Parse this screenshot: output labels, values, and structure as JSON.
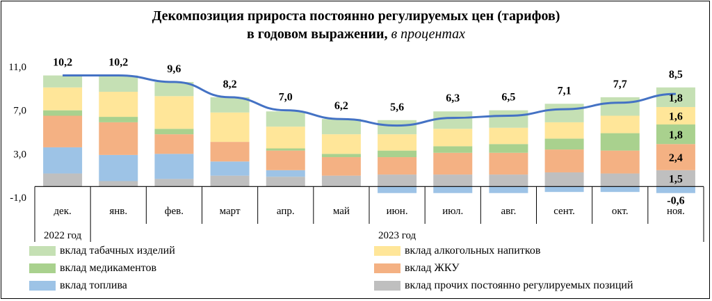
{
  "title": {
    "line1": "Декомпозиция прироста постоянно регулируемых цен (тарифов)",
    "line2": "в годовом выражении,",
    "unit": "в процентах"
  },
  "chart_data": {
    "type": "bar",
    "stacked": true,
    "categories": [
      "дек.",
      "янв.",
      "фев.",
      "март",
      "апр.",
      "май",
      "июн.",
      "июл.",
      "авг.",
      "сент.",
      "окт.",
      "ноя."
    ],
    "year_labels": [
      {
        "text": "2022 год",
        "category": "дек."
      },
      {
        "text": "2023 год",
        "category": "июн."
      }
    ],
    "y_ticks": [
      "11,0",
      "7,0",
      "3,0",
      "-1,0"
    ],
    "ylim": [
      -1,
      11
    ],
    "grid": false,
    "legend_position": "bottom",
    "series": [
      {
        "name": "вклад прочих постоянно регулируемых  позиций",
        "color": "#BFBFBF",
        "values": [
          1.2,
          0.5,
          0.7,
          1.0,
          0.9,
          1.0,
          1.1,
          1.1,
          1.1,
          1.3,
          1.2,
          1.5
        ]
      },
      {
        "name": "вклад топлива",
        "color": "#9DC3E6",
        "values": [
          2.4,
          2.4,
          2.3,
          1.3,
          0.6,
          0.0,
          -0.6,
          -0.6,
          -0.6,
          -0.5,
          -0.5,
          -0.6
        ]
      },
      {
        "name": "вклад ЖКУ",
        "color": "#F4B183",
        "values": [
          2.9,
          3.0,
          1.8,
          1.8,
          1.8,
          1.7,
          1.6,
          2.0,
          2.0,
          2.1,
          2.1,
          2.4
        ]
      },
      {
        "name": "вклад медикаментов",
        "color": "#A9D18E",
        "values": [
          0.5,
          0.5,
          0.5,
          0.0,
          0.2,
          0.3,
          0.6,
          0.6,
          0.8,
          1.0,
          1.6,
          1.8
        ]
      },
      {
        "name": "вклад алкогольных напитков",
        "color": "#FFE699",
        "values": [
          2.1,
          2.3,
          3.0,
          2.7,
          2.0,
          1.8,
          1.5,
          1.6,
          1.5,
          1.5,
          1.6,
          1.6
        ]
      },
      {
        "name": "вклад табачных изделий",
        "color": "#C5E0B4",
        "values": [
          1.1,
          1.5,
          1.3,
          1.4,
          1.4,
          1.4,
          1.3,
          1.6,
          1.6,
          1.7,
          1.7,
          1.8
        ]
      }
    ],
    "total_line": {
      "color": "#4472C4",
      "values": [
        10.2,
        10.2,
        9.6,
        8.2,
        7.0,
        6.2,
        5.6,
        6.3,
        6.5,
        7.1,
        7.7,
        8.5
      ]
    },
    "total_labels": [
      "10,2",
      "10,2",
      "9,6",
      "8,2",
      "7,0",
      "6,2",
      "5,6",
      "6,3",
      "6,5",
      "7,1",
      "7,7",
      "8,5"
    ],
    "last_bar_labels": [
      {
        "series": "вклад табачных изделий",
        "text": "1,8"
      },
      {
        "series": "вклад алкогольных напитков",
        "text": "1,6"
      },
      {
        "series": "вклад медикаментов",
        "text": "1,8"
      },
      {
        "series": "вклад ЖКУ",
        "text": "2,4"
      },
      {
        "series": "вклад прочих постоянно регулируемых  позиций",
        "text": "1,5"
      },
      {
        "series": "вклад топлива",
        "text": "-0,6"
      }
    ]
  },
  "legend": [
    {
      "label": "вклад табачных изделий",
      "color": "#C5E0B4"
    },
    {
      "label": "вклад алкогольных напитков",
      "color": "#FFE699"
    },
    {
      "label": "вклад медикаментов",
      "color": "#A9D18E"
    },
    {
      "label": "вклад ЖКУ",
      "color": "#F4B183"
    },
    {
      "label": "вклад топлива",
      "color": "#9DC3E6"
    },
    {
      "label": "вклад прочих постоянно регулируемых  позиций",
      "color": "#BFBFBF"
    }
  ]
}
